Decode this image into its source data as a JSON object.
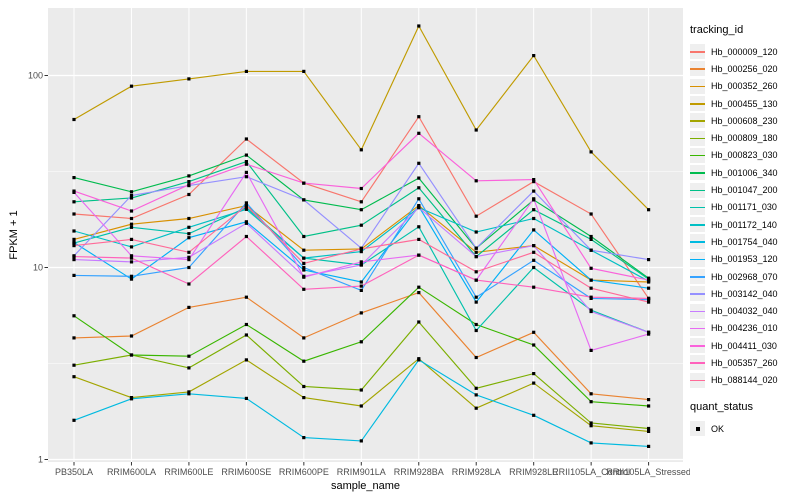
{
  "chart_data": {
    "type": "line",
    "xlabel": "sample_name",
    "ylabel": "FPKM + 1",
    "y_scale": "log10",
    "y_ticks": [
      1,
      10,
      100
    ],
    "y_minor": [
      3.162,
      31.62
    ],
    "ylim": [
      0.97,
      225
    ],
    "grid": true,
    "panel_bg": "#EBEBEB",
    "grid_color": "#FFFFFF",
    "point_color": "#000000",
    "point_shape": "square",
    "tick_label_color": "#4D4D4D",
    "legend": {
      "title": "tracking_id",
      "position": "right"
    },
    "quant_status": {
      "title": "quant_status",
      "items": [
        {
          "label": "OK",
          "marker": "black-square"
        }
      ]
    },
    "categories": [
      "PB350LA",
      "RRIM600LA",
      "RRIM600LE",
      "RRIM600SE",
      "RRIM600PE",
      "RRIM901LA",
      "RRIM928BA",
      "RRIM928LA",
      "RRIM928LE",
      "RRII105LA_Control",
      "RRII105LA_Stressed"
    ],
    "series": [
      {
        "name": "Hb_000009_120",
        "color": "#F8766D",
        "values": [
          19,
          18,
          24,
          46.7,
          27.5,
          22,
          61,
          18.5,
          28,
          19,
          6.9
        ]
      },
      {
        "name": "Hb_000256_020",
        "color": "#EA8331",
        "values": [
          4.3,
          4.4,
          6.2,
          7.0,
          4.3,
          5.8,
          7.4,
          3.4,
          4.6,
          2.2,
          2.05
        ]
      },
      {
        "name": "Hb_000352_260",
        "color": "#D89000",
        "values": [
          14,
          16.8,
          18,
          21,
          12.3,
          12.5,
          21,
          12,
          13,
          8.6,
          8.4
        ]
      },
      {
        "name": "Hb_000455_130",
        "color": "#C09B00",
        "values": [
          59,
          88,
          96,
          105,
          105,
          41,
          181,
          52,
          127,
          40,
          20
        ]
      },
      {
        "name": "Hb_000608_230",
        "color": "#A3A500",
        "values": [
          2.7,
          2.1,
          2.25,
          3.3,
          2.1,
          1.9,
          3.35,
          1.85,
          2.5,
          1.5,
          1.4
        ]
      },
      {
        "name": "Hb_000809_180",
        "color": "#7CAE00",
        "values": [
          3.1,
          3.5,
          3.0,
          4.45,
          2.4,
          2.3,
          5.2,
          2.35,
          2.8,
          1.55,
          1.45
        ]
      },
      {
        "name": "Hb_000823_030",
        "color": "#39B600",
        "values": [
          5.6,
          3.5,
          3.45,
          5.05,
          3.25,
          4.1,
          7.9,
          5.05,
          3.95,
          2.0,
          1.9
        ]
      },
      {
        "name": "Hb_001006_340",
        "color": "#00BB4E",
        "values": [
          29.4,
          24.8,
          30,
          38.5,
          22.5,
          20,
          29.2,
          12.6,
          22.5,
          14.5,
          8.8
        ]
      },
      {
        "name": "Hb_001047_200",
        "color": "#00C087",
        "values": [
          22,
          23,
          28,
          35.6,
          14.5,
          16.6,
          26,
          11.4,
          20,
          14,
          8.7
        ]
      },
      {
        "name": "Hb_001171_030",
        "color": "#00C1AB",
        "values": [
          13.4,
          16.2,
          15,
          20.5,
          11.2,
          10.3,
          16.3,
          4.7,
          10,
          6.0,
          4.6
        ]
      },
      {
        "name": "Hb_001172_140",
        "color": "#00BFC4",
        "values": [
          15.5,
          12.8,
          16.2,
          20.1,
          11.2,
          12.1,
          20.5,
          15.3,
          18,
          12.3,
          8.5
        ]
      },
      {
        "name": "Hb_001754_040",
        "color": "#00BAE0",
        "values": [
          1.6,
          2.07,
          2.2,
          2.08,
          1.3,
          1.25,
          3.3,
          2.17,
          1.7,
          1.22,
          1.17
        ]
      },
      {
        "name": "Hb_001953_120",
        "color": "#00B0F6",
        "values": [
          13.5,
          8.7,
          14.3,
          17.3,
          9.7,
          8.4,
          20.8,
          6.6,
          15.7,
          8.6,
          7.8
        ]
      },
      {
        "name": "Hb_002968_070",
        "color": "#35A2FF",
        "values": [
          9.1,
          9.0,
          10,
          21.7,
          10,
          7.6,
          22.8,
          7.0,
          10.9,
          6.9,
          6.8
        ]
      },
      {
        "name": "Hb_003142_040",
        "color": "#9590FF",
        "values": [
          11.5,
          23.7,
          26.7,
          29.7,
          22.5,
          12.6,
          34.9,
          12.6,
          25,
          12.3,
          11
        ]
      },
      {
        "name": "Hb_004032_040",
        "color": "#C77CFF",
        "values": [
          11,
          10.7,
          11.3,
          17,
          9.0,
          10.3,
          20.5,
          11.4,
          13,
          5.9,
          4.6
        ]
      },
      {
        "name": "Hb_004236_010",
        "color": "#E76BF3",
        "values": [
          24.6,
          11.5,
          11,
          31.3,
          8.9,
          10.7,
          11.6,
          8.6,
          22.8,
          3.7,
          4.5
        ]
      },
      {
        "name": "Hb_004411_030",
        "color": "#FA62DB",
        "values": [
          25,
          19.7,
          27,
          34.5,
          27.5,
          25.8,
          50,
          28.3,
          28.7,
          9.9,
          8.6
        ]
      },
      {
        "name": "Hb_005357_260",
        "color": "#FF62BC",
        "values": [
          11.4,
          11.2,
          8.2,
          14.5,
          7.7,
          8.0,
          11.6,
          8.6,
          7.9,
          7.0,
          6.9
        ]
      },
      {
        "name": "Hb_088144_020",
        "color": "#FF6A98",
        "values": [
          13.0,
          14,
          12,
          21,
          10.5,
          12.5,
          14,
          9.5,
          12,
          7.8,
          6.6
        ]
      }
    ]
  }
}
